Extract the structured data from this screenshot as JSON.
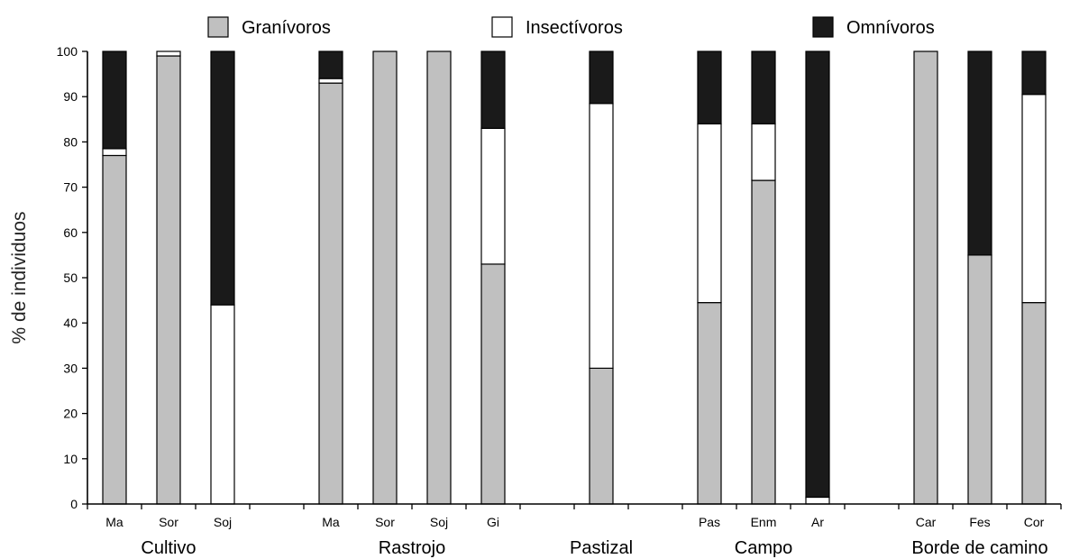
{
  "chart_data": {
    "type": "bar",
    "stacked": true,
    "ylabel": "% de individuos",
    "xlabel": "",
    "ylim": [
      0,
      100
    ],
    "yticks": [
      0,
      10,
      20,
      30,
      40,
      50,
      60,
      70,
      80,
      90,
      100
    ],
    "legend_position": "top",
    "series": [
      {
        "name": "Granívoros",
        "color": "#c0c0c0"
      },
      {
        "name": "Insectívoros",
        "color": "#ffffff"
      },
      {
        "name": "Omnívoros",
        "color": "#1a1a1a"
      }
    ],
    "groups": [
      {
        "label": "Cultivo",
        "bars": [
          {
            "label": "Ma",
            "values": [
              77,
              1.5,
              21.5
            ]
          },
          {
            "label": "Sor",
            "values": [
              99,
              1,
              0
            ]
          },
          {
            "label": "Soj",
            "values": [
              0,
              44,
              56
            ]
          }
        ]
      },
      {
        "label": "Rastrojo",
        "bars": [
          {
            "label": "Ma",
            "values": [
              93,
              1,
              6
            ]
          },
          {
            "label": "Sor",
            "values": [
              100,
              0,
              0
            ]
          },
          {
            "label": "Soj",
            "values": [
              100,
              0,
              0
            ]
          },
          {
            "label": "Gi",
            "values": [
              53,
              30,
              17
            ]
          }
        ]
      },
      {
        "label": "Pastizal",
        "bars": [
          {
            "label": "",
            "values": [
              30,
              58.5,
              11.5
            ]
          }
        ]
      },
      {
        "label": "Campo",
        "bars": [
          {
            "label": "Pas",
            "values": [
              44.5,
              39.5,
              16
            ]
          },
          {
            "label": "Enm",
            "values": [
              71.5,
              12.5,
              16
            ]
          },
          {
            "label": "Ar",
            "values": [
              0,
              1.5,
              98.5
            ]
          }
        ]
      },
      {
        "label": "Borde de camino",
        "bars": [
          {
            "label": "Car",
            "values": [
              100,
              0,
              0
            ]
          },
          {
            "label": "Fes",
            "values": [
              55,
              0,
              45
            ]
          },
          {
            "label": "Cor",
            "values": [
              44.5,
              46,
              9.5
            ]
          }
        ]
      }
    ]
  }
}
